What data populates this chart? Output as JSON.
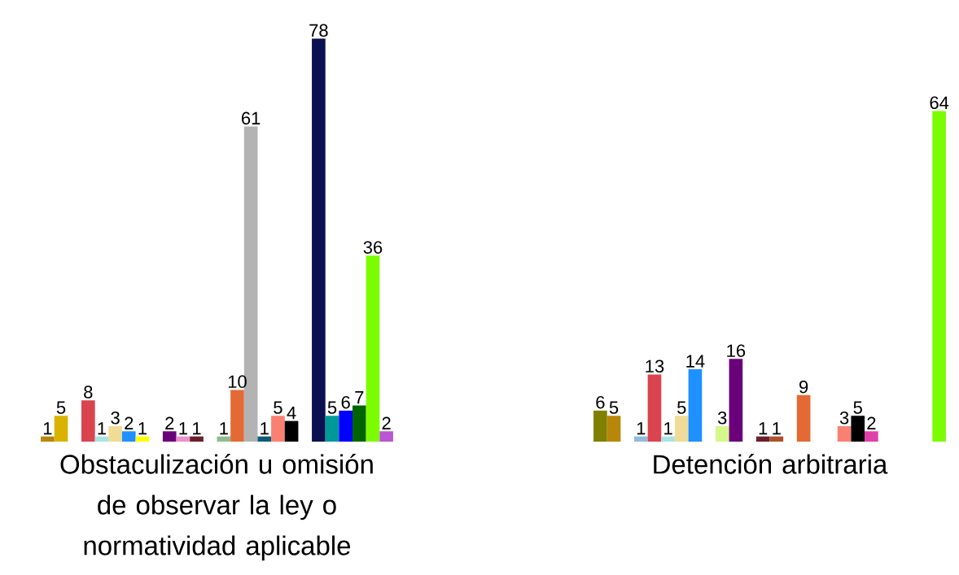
{
  "chart_data": {
    "type": "bar",
    "categories": [
      "Obstaculización u omisión de observar la ley o normatividad aplicable",
      "Detención arbitraria"
    ],
    "data_labels": true,
    "series": [
      {
        "values": [
          1,
          6
        ],
        "colors": [
          "#b8860b",
          "#7f7f00"
        ]
      },
      {
        "values": [
          5,
          5
        ],
        "colors": [
          "#dab300",
          "#b8860b"
        ]
      },
      {
        "values": [
          null,
          null
        ],
        "colors": [
          null,
          null
        ]
      },
      {
        "values": [
          8,
          1
        ],
        "colors": [
          "#d9444f",
          "#8fbcdd"
        ]
      },
      {
        "values": [
          1,
          13
        ],
        "colors": [
          "#a8e4e4",
          "#d9444f"
        ]
      },
      {
        "values": [
          3,
          1
        ],
        "colors": [
          "#f0dc96",
          "#a8e4e4"
        ]
      },
      {
        "values": [
          2,
          5
        ],
        "colors": [
          "#1e90ff",
          "#f0dc96"
        ]
      },
      {
        "values": [
          1,
          14
        ],
        "colors": [
          "#ffff00",
          "#1e90ff"
        ]
      },
      {
        "values": [
          null,
          null
        ],
        "colors": [
          null,
          null
        ]
      },
      {
        "values": [
          2,
          3
        ],
        "colors": [
          "#6b007b",
          "#d6f78a"
        ]
      },
      {
        "values": [
          1,
          16
        ],
        "colors": [
          "#ee8fcf",
          "#6b007b"
        ]
      },
      {
        "values": [
          1,
          null
        ],
        "colors": [
          "#6b1f2a",
          null
        ]
      },
      {
        "values": [
          null,
          1
        ],
        "colors": [
          null,
          "#6b1f2a"
        ]
      },
      {
        "values": [
          1,
          1
        ],
        "colors": [
          "#8fbc8f",
          "#b0502a"
        ]
      },
      {
        "values": [
          10,
          null
        ],
        "colors": [
          "#e46a35",
          null
        ]
      },
      {
        "values": [
          61,
          9
        ],
        "colors": [
          "#b3b3b3",
          "#e46a35"
        ]
      },
      {
        "values": [
          1,
          null
        ],
        "colors": [
          "#0a5c78",
          null
        ]
      },
      {
        "values": [
          5,
          null
        ],
        "colors": [
          "#fa8072",
          null
        ]
      },
      {
        "values": [
          4,
          3
        ],
        "colors": [
          "#000000",
          "#fa8072"
        ]
      },
      {
        "values": [
          null,
          5
        ],
        "colors": [
          null,
          "#000000"
        ]
      },
      {
        "values": [
          78,
          2
        ],
        "colors": [
          "#0b1150",
          "#e040a8"
        ]
      },
      {
        "values": [
          5,
          null
        ],
        "colors": [
          "#009999",
          null
        ]
      },
      {
        "values": [
          6,
          null
        ],
        "colors": [
          "#0000ff",
          null
        ]
      },
      {
        "values": [
          7,
          null
        ],
        "colors": [
          "#006400",
          null
        ]
      },
      {
        "values": [
          36,
          null
        ],
        "colors": [
          "#7cfc00",
          null
        ]
      },
      {
        "values": [
          2,
          64
        ],
        "colors": [
          "#ba55d3",
          "#7cfc00"
        ]
      }
    ]
  }
}
